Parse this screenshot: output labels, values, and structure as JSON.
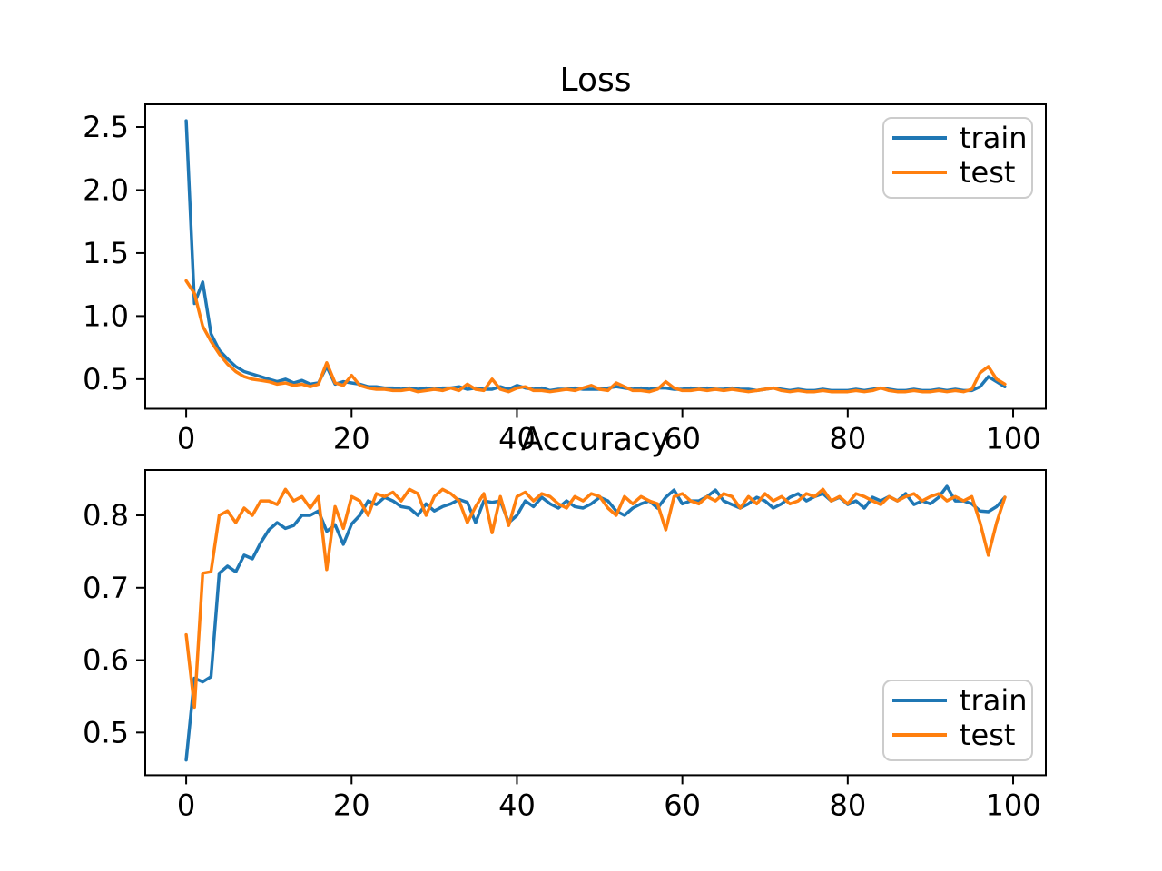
{
  "figure": {
    "background": "#ffffff"
  },
  "colors": {
    "train": "#1f77b4",
    "test": "#ff7f0e",
    "axis": "#000000",
    "legend_border": "#cccccc"
  },
  "chart_data": [
    {
      "type": "line",
      "title": "Loss",
      "x_start": 0,
      "x_step": 1,
      "xlim": [
        -4.95,
        103.95
      ],
      "ylim": [
        0.265,
        2.68
      ],
      "grid": false,
      "xticks": {
        "values": [
          0,
          20,
          40,
          60,
          80,
          100
        ],
        "labels": [
          "0",
          "20",
          "40",
          "60",
          "80",
          "100"
        ]
      },
      "yticks": {
        "values": [
          0.5,
          1.0,
          1.5,
          2.0,
          2.5
        ],
        "labels": [
          "0.5",
          "1.0",
          "1.5",
          "2.0",
          "2.5"
        ]
      },
      "legend": {
        "position": "upper right",
        "entries": [
          "train",
          "test"
        ]
      },
      "series": [
        {
          "name": "train",
          "color": "#1f77b4",
          "values": [
            2.55,
            1.1,
            1.27,
            0.86,
            0.73,
            0.66,
            0.6,
            0.56,
            0.54,
            0.52,
            0.5,
            0.48,
            0.5,
            0.47,
            0.49,
            0.46,
            0.47,
            0.6,
            0.46,
            0.48,
            0.47,
            0.46,
            0.44,
            0.44,
            0.43,
            0.43,
            0.42,
            0.43,
            0.42,
            0.43,
            0.42,
            0.43,
            0.43,
            0.44,
            0.42,
            0.43,
            0.42,
            0.42,
            0.44,
            0.42,
            0.45,
            0.43,
            0.42,
            0.43,
            0.41,
            0.42,
            0.42,
            0.43,
            0.42,
            0.42,
            0.42,
            0.43,
            0.44,
            0.43,
            0.42,
            0.43,
            0.42,
            0.43,
            0.43,
            0.42,
            0.42,
            0.43,
            0.42,
            0.43,
            0.42,
            0.42,
            0.43,
            0.42,
            0.42,
            0.41,
            0.42,
            0.43,
            0.42,
            0.41,
            0.42,
            0.41,
            0.41,
            0.42,
            0.41,
            0.41,
            0.41,
            0.42,
            0.41,
            0.42,
            0.43,
            0.42,
            0.41,
            0.41,
            0.42,
            0.41,
            0.41,
            0.42,
            0.41,
            0.42,
            0.41,
            0.41,
            0.44,
            0.52,
            0.48,
            0.44
          ]
        },
        {
          "name": "test",
          "color": "#ff7f0e",
          "values": [
            1.28,
            1.18,
            0.92,
            0.8,
            0.7,
            0.62,
            0.56,
            0.52,
            0.5,
            0.49,
            0.48,
            0.46,
            0.47,
            0.45,
            0.46,
            0.44,
            0.46,
            0.63,
            0.47,
            0.45,
            0.53,
            0.45,
            0.43,
            0.42,
            0.42,
            0.41,
            0.41,
            0.42,
            0.4,
            0.41,
            0.42,
            0.41,
            0.43,
            0.41,
            0.46,
            0.42,
            0.41,
            0.5,
            0.42,
            0.4,
            0.43,
            0.44,
            0.41,
            0.41,
            0.4,
            0.41,
            0.42,
            0.41,
            0.43,
            0.45,
            0.42,
            0.41,
            0.47,
            0.44,
            0.41,
            0.41,
            0.4,
            0.42,
            0.48,
            0.43,
            0.41,
            0.41,
            0.42,
            0.41,
            0.42,
            0.41,
            0.42,
            0.41,
            0.4,
            0.41,
            0.42,
            0.43,
            0.41,
            0.4,
            0.41,
            0.4,
            0.4,
            0.41,
            0.4,
            0.4,
            0.4,
            0.41,
            0.4,
            0.41,
            0.43,
            0.41,
            0.4,
            0.4,
            0.41,
            0.4,
            0.4,
            0.41,
            0.4,
            0.41,
            0.4,
            0.42,
            0.55,
            0.6,
            0.5,
            0.46
          ]
        }
      ]
    },
    {
      "type": "line",
      "title": "Accuracy",
      "x_start": 0,
      "x_step": 1,
      "xlim": [
        -4.95,
        103.95
      ],
      "ylim": [
        0.441,
        0.8627
      ],
      "grid": false,
      "xticks": {
        "values": [
          0,
          20,
          40,
          60,
          80,
          100
        ],
        "labels": [
          "0",
          "20",
          "40",
          "60",
          "80",
          "100"
        ]
      },
      "yticks": {
        "values": [
          0.5,
          0.6,
          0.7,
          0.8
        ],
        "labels": [
          "0.5",
          "0.6",
          "0.7",
          "0.8"
        ]
      },
      "legend": {
        "position": "lower right",
        "entries": [
          "train",
          "test"
        ]
      },
      "series": [
        {
          "name": "train",
          "color": "#1f77b4",
          "values": [
            0.462,
            0.575,
            0.57,
            0.577,
            0.72,
            0.73,
            0.722,
            0.745,
            0.74,
            0.762,
            0.78,
            0.79,
            0.782,
            0.786,
            0.8,
            0.8,
            0.806,
            0.778,
            0.787,
            0.76,
            0.788,
            0.8,
            0.82,
            0.815,
            0.825,
            0.82,
            0.812,
            0.81,
            0.8,
            0.816,
            0.806,
            0.812,
            0.816,
            0.822,
            0.818,
            0.79,
            0.82,
            0.818,
            0.82,
            0.79,
            0.8,
            0.82,
            0.812,
            0.825,
            0.816,
            0.81,
            0.82,
            0.812,
            0.81,
            0.816,
            0.825,
            0.82,
            0.806,
            0.8,
            0.81,
            0.816,
            0.82,
            0.81,
            0.825,
            0.835,
            0.816,
            0.82,
            0.82,
            0.826,
            0.835,
            0.82,
            0.815,
            0.81,
            0.816,
            0.825,
            0.82,
            0.81,
            0.816,
            0.825,
            0.83,
            0.82,
            0.826,
            0.83,
            0.82,
            0.825,
            0.815,
            0.82,
            0.81,
            0.825,
            0.82,
            0.826,
            0.82,
            0.83,
            0.815,
            0.82,
            0.816,
            0.825,
            0.84,
            0.82,
            0.82,
            0.816,
            0.806,
            0.805,
            0.812,
            0.825
          ]
        },
        {
          "name": "test",
          "color": "#ff7f0e",
          "values": [
            0.635,
            0.535,
            0.72,
            0.722,
            0.8,
            0.806,
            0.79,
            0.81,
            0.8,
            0.82,
            0.82,
            0.815,
            0.836,
            0.82,
            0.826,
            0.81,
            0.826,
            0.725,
            0.812,
            0.782,
            0.826,
            0.82,
            0.8,
            0.83,
            0.826,
            0.832,
            0.82,
            0.836,
            0.83,
            0.8,
            0.826,
            0.836,
            0.83,
            0.82,
            0.79,
            0.812,
            0.83,
            0.776,
            0.826,
            0.786,
            0.826,
            0.832,
            0.82,
            0.83,
            0.826,
            0.816,
            0.81,
            0.826,
            0.82,
            0.83,
            0.826,
            0.81,
            0.8,
            0.826,
            0.816,
            0.826,
            0.82,
            0.816,
            0.78,
            0.826,
            0.83,
            0.82,
            0.816,
            0.826,
            0.82,
            0.83,
            0.826,
            0.81,
            0.826,
            0.816,
            0.83,
            0.82,
            0.826,
            0.816,
            0.82,
            0.83,
            0.826,
            0.836,
            0.82,
            0.826,
            0.816,
            0.83,
            0.826,
            0.82,
            0.815,
            0.826,
            0.82,
            0.826,
            0.83,
            0.82,
            0.826,
            0.83,
            0.82,
            0.826,
            0.82,
            0.826,
            0.79,
            0.745,
            0.79,
            0.825
          ]
        }
      ]
    }
  ]
}
